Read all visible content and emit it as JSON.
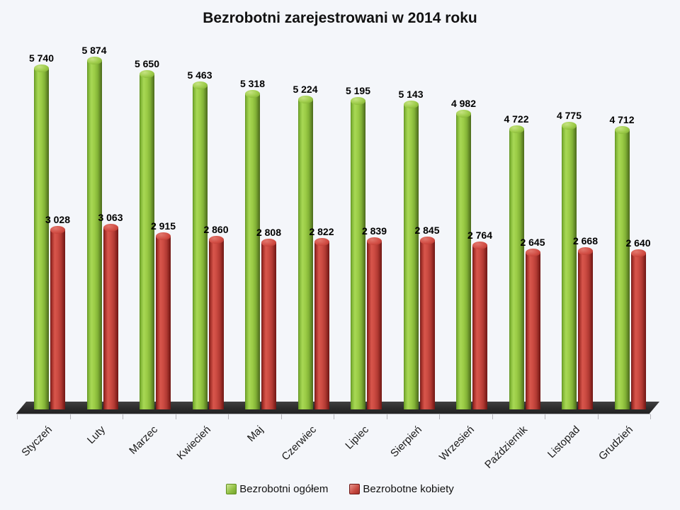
{
  "title": "Bezrobotni zarejestrowani w 2014 roku",
  "background_color": "#f4f6fa",
  "chart_data": {
    "type": "bar",
    "style": "3d-cylinder",
    "title": "Bezrobotni zarejestrowani w 2014 roku",
    "categories": [
      "Styczeń",
      "Luty",
      "Marzec",
      "Kwiecień",
      "Maj",
      "Czerwiec",
      "Lipiec",
      "Sierpień",
      "Wrzesień",
      "Październik",
      "Listopad",
      "Grudzień"
    ],
    "series": [
      {
        "name": "Bezrobotni ogółem",
        "key": "ogolem",
        "color": "#8fbf42",
        "values": [
          5740,
          5874,
          5650,
          5463,
          5318,
          5224,
          5195,
          5143,
          4982,
          4722,
          4775,
          4712
        ],
        "labels": [
          "5 740",
          "5 874",
          "5 650",
          "5 463",
          "5 318",
          "5 224",
          "5 195",
          "5 143",
          "4 982",
          "4 722",
          "4 775",
          "4 712"
        ]
      },
      {
        "name": "Bezrobotne kobiety",
        "key": "kobiety",
        "color": "#c74940",
        "values": [
          3028,
          3063,
          2915,
          2860,
          2808,
          2822,
          2839,
          2845,
          2764,
          2645,
          2668,
          2640
        ],
        "labels": [
          "3 028",
          "3 063",
          "2 915",
          "2 860",
          "2 808",
          "2 822",
          "2 839",
          "2 845",
          "2 764",
          "2 645",
          "2 668",
          "2 640"
        ]
      }
    ],
    "xlabel": "",
    "ylabel": "",
    "ylim": [
      0,
      6000
    ],
    "value_axis_visible": false,
    "grid": false,
    "data_labels": true,
    "number_format": "space-thousands",
    "legend_position": "bottom",
    "floor_color": "#2c2c2c",
    "axis_color": "#b5b5ba"
  },
  "legend": {
    "items": [
      {
        "label": "Bezrobotni ogółem",
        "color": "#8fbf42"
      },
      {
        "label": "Bezrobotne kobiety",
        "color": "#c74940"
      }
    ]
  }
}
